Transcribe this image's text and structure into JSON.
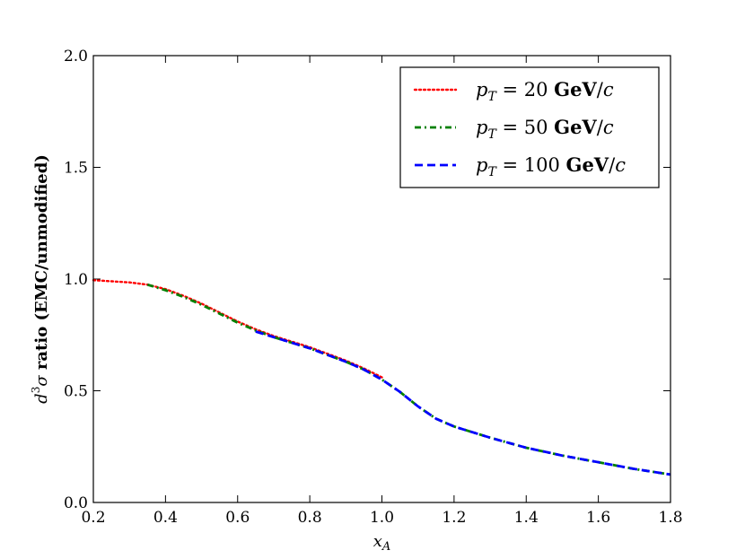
{
  "chart_data": {
    "type": "line",
    "title": "",
    "xlabel": "x_A",
    "ylabel": "d³σ ratio (EMC/unmodified)",
    "xlim": [
      0.2,
      1.8
    ],
    "ylim": [
      0.0,
      2.0
    ],
    "xticks": [
      "0.2",
      "0.4",
      "0.6",
      "0.8",
      "1.0",
      "1.2",
      "1.4",
      "1.6",
      "1.8"
    ],
    "yticks": [
      "0.0",
      "0.5",
      "1.0",
      "1.5",
      "2.0"
    ],
    "legend_position": "top-right",
    "series": [
      {
        "name": "p_T = 20 GeV/c",
        "color": "#ff0000",
        "style": "dotted",
        "x": [
          0.2,
          0.25,
          0.3,
          0.35,
          0.4,
          0.45,
          0.5,
          0.55,
          0.6,
          0.65,
          0.7,
          0.75,
          0.8,
          0.85,
          0.9,
          0.95,
          1.0
        ],
        "y": [
          0.995,
          0.99,
          0.985,
          0.975,
          0.955,
          0.925,
          0.89,
          0.85,
          0.81,
          0.775,
          0.745,
          0.72,
          0.695,
          0.665,
          0.635,
          0.6,
          0.56
        ]
      },
      {
        "name": "p_T = 50 GeV/c",
        "color": "#008000",
        "style": "dashdot",
        "x": [
          0.35,
          0.4,
          0.45,
          0.5,
          0.55,
          0.6,
          0.65,
          0.7,
          0.75,
          0.8,
          0.85,
          0.9,
          0.95,
          1.0,
          1.05,
          1.1,
          1.15,
          1.2,
          1.3,
          1.4,
          1.5,
          1.6,
          1.7,
          1.8
        ],
        "y": [
          0.975,
          0.95,
          0.92,
          0.885,
          0.845,
          0.805,
          0.77,
          0.74,
          0.715,
          0.69,
          0.66,
          0.63,
          0.595,
          0.55,
          0.495,
          0.43,
          0.375,
          0.34,
          0.29,
          0.245,
          0.21,
          0.18,
          0.15,
          0.125
        ]
      },
      {
        "name": "p_T = 100 GeV/c",
        "color": "#0000ff",
        "style": "dashed",
        "x": [
          0.65,
          0.7,
          0.75,
          0.8,
          0.85,
          0.9,
          0.95,
          1.0,
          1.05,
          1.1,
          1.15,
          1.2,
          1.3,
          1.4,
          1.5,
          1.6,
          1.7,
          1.8
        ],
        "y": [
          0.765,
          0.74,
          0.715,
          0.69,
          0.66,
          0.63,
          0.595,
          0.55,
          0.495,
          0.43,
          0.375,
          0.34,
          0.29,
          0.245,
          0.21,
          0.18,
          0.15,
          0.125
        ]
      }
    ]
  }
}
